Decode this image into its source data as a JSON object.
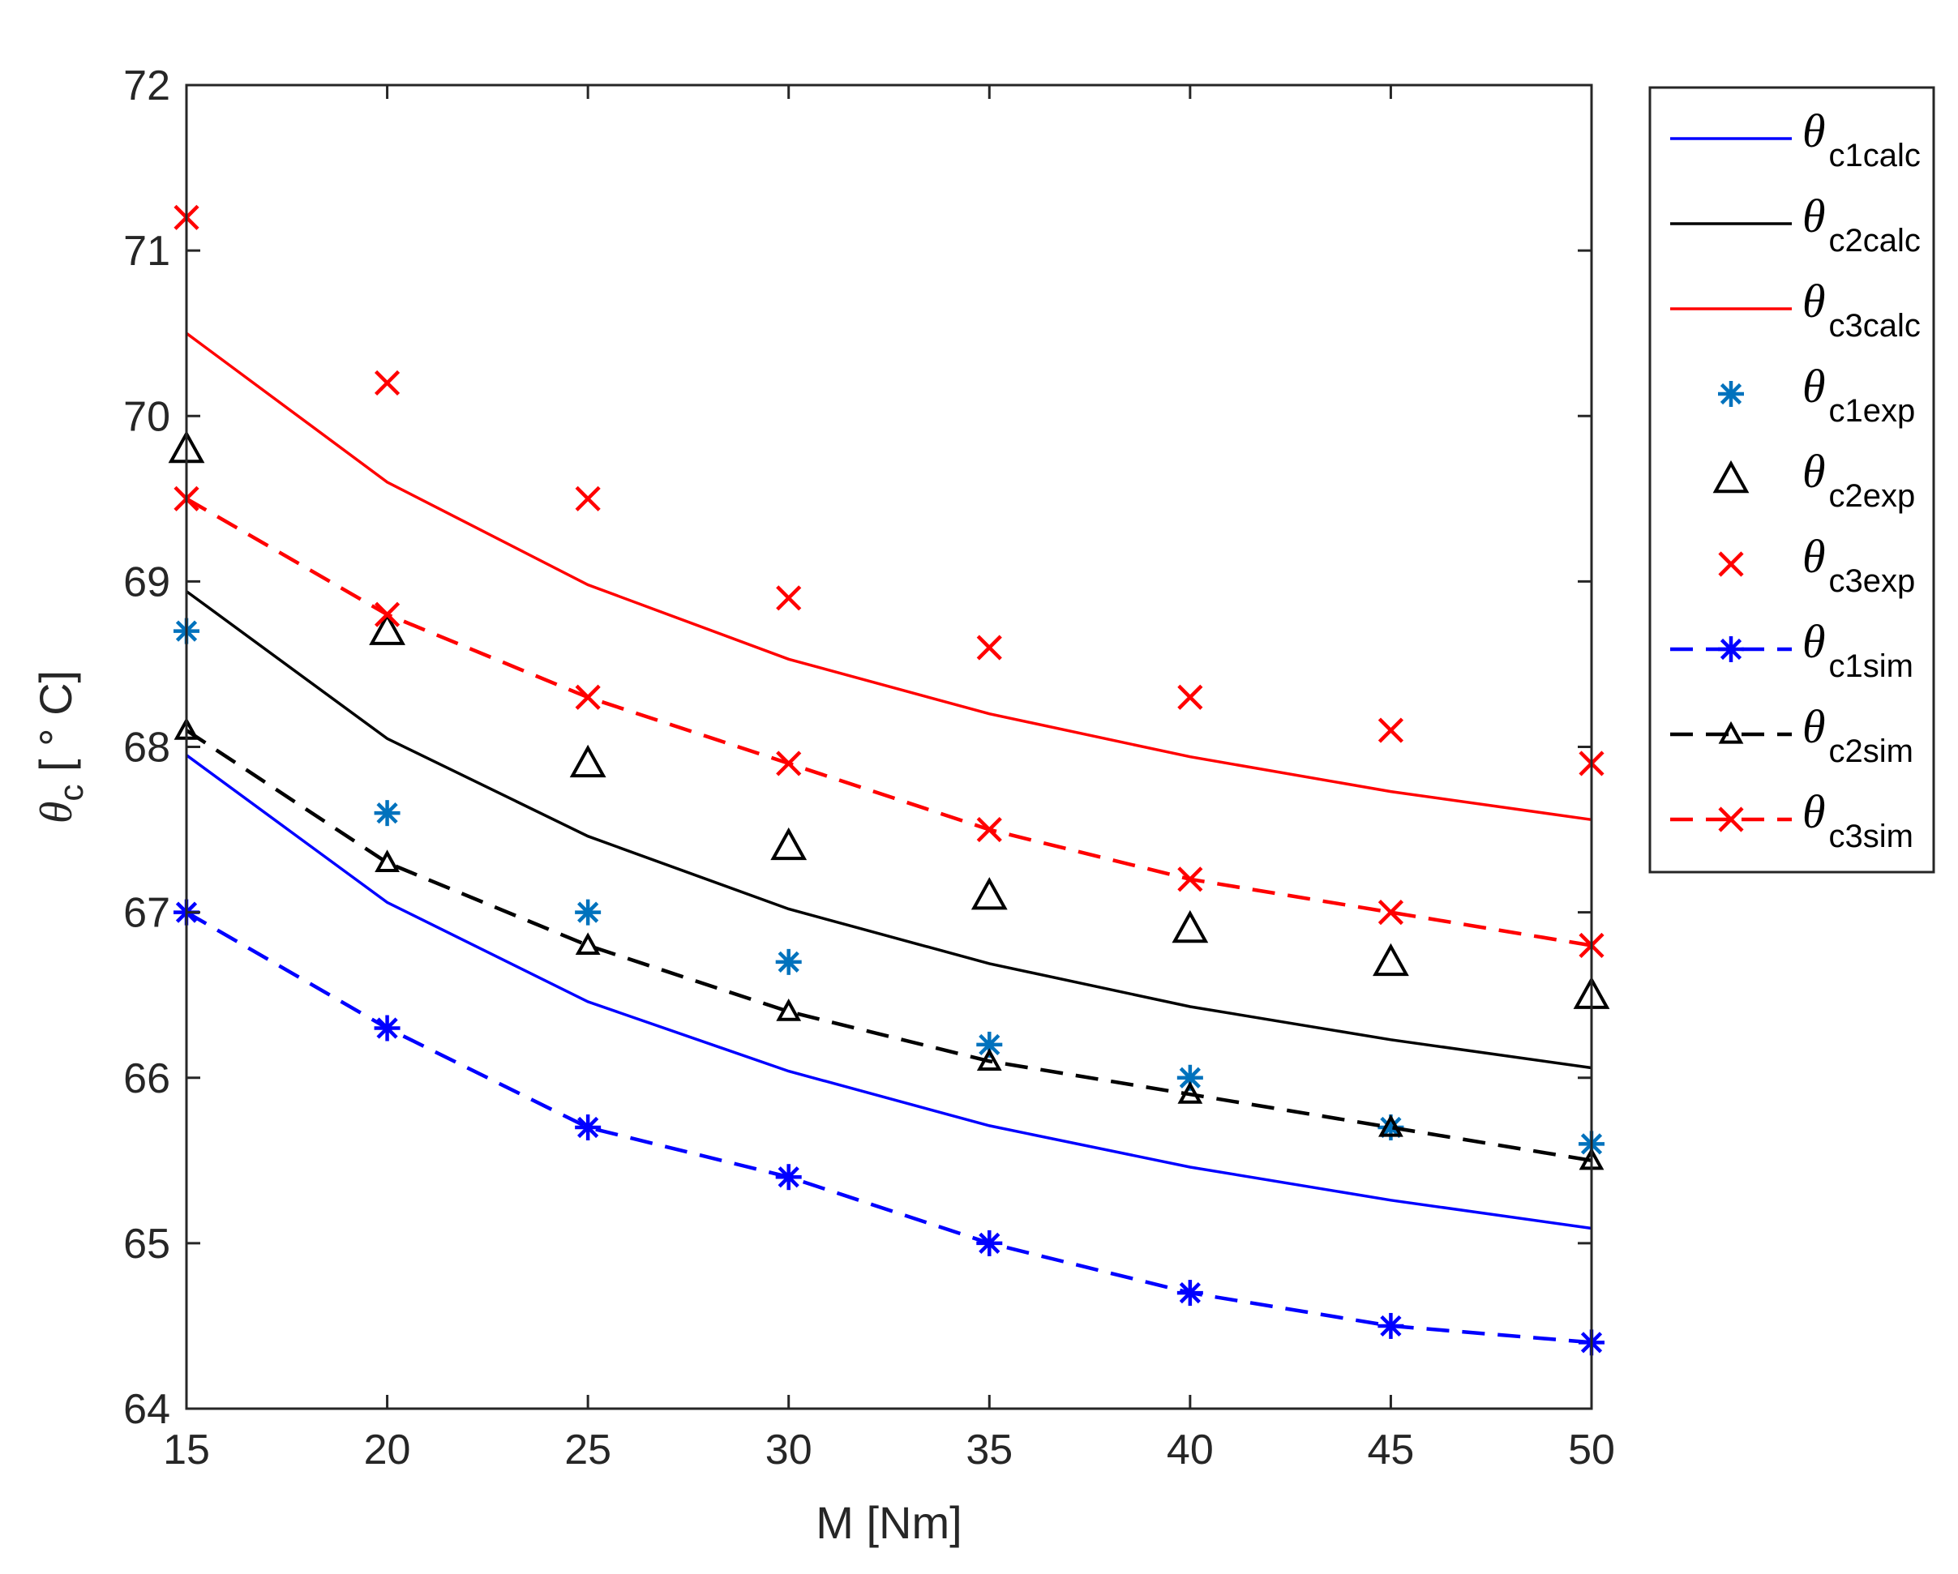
{
  "chart_data": {
    "type": "line",
    "title": "",
    "xlabel": "M [Nm]",
    "ylabel": {
      "symbol": "θ",
      "subscript": "c",
      "unit": " [ ° C]"
    },
    "xlim": [
      15,
      50
    ],
    "ylim": [
      64,
      72
    ],
    "xticks": [
      15,
      20,
      25,
      30,
      35,
      40,
      45,
      50
    ],
    "yticks": [
      64,
      65,
      66,
      67,
      68,
      69,
      70,
      71,
      72
    ],
    "x": [
      15,
      20,
      25,
      30,
      35,
      40,
      45,
      50
    ],
    "legend_position": "outside-right",
    "colors": {
      "blue": "#0000ff",
      "black": "#000000",
      "red": "#ff0000",
      "lightblue": "#0072bd"
    },
    "series": [
      {
        "name": "θ c1calc",
        "symbol": "θ",
        "sub": "c1calc",
        "values": [
          67.95,
          67.06,
          66.46,
          66.04,
          65.71,
          65.46,
          65.26,
          65.09
        ],
        "color": "#0000ff",
        "line": "solid",
        "marker": "none"
      },
      {
        "name": "θ c2calc",
        "symbol": "θ",
        "sub": "c2calc",
        "values": [
          68.94,
          68.05,
          67.46,
          67.02,
          66.69,
          66.43,
          66.23,
          66.06
        ],
        "color": "#000000",
        "line": "solid",
        "marker": "none"
      },
      {
        "name": "θ c3calc",
        "symbol": "θ",
        "sub": "c3calc",
        "values": [
          70.5,
          69.6,
          68.98,
          68.53,
          68.2,
          67.94,
          67.73,
          67.56
        ],
        "color": "#ff0000",
        "line": "solid",
        "marker": "none"
      },
      {
        "name": "θ c1exp",
        "symbol": "θ",
        "sub": "c1exp",
        "values": [
          68.7,
          67.6,
          67.0,
          66.7,
          66.2,
          66.0,
          65.7,
          65.6
        ],
        "color": "#0072bd",
        "line": "none",
        "marker": "star"
      },
      {
        "name": "θ c2exp",
        "symbol": "θ",
        "sub": "c2exp",
        "values": [
          69.8,
          68.7,
          67.9,
          67.4,
          67.1,
          66.9,
          66.7,
          66.5
        ],
        "color": "#000000",
        "line": "none",
        "marker": "triangle"
      },
      {
        "name": "θ c3exp",
        "symbol": "θ",
        "sub": "c3exp",
        "values": [
          71.2,
          70.2,
          69.5,
          68.9,
          68.6,
          68.3,
          68.1,
          67.9
        ],
        "color": "#ff0000",
        "line": "none",
        "marker": "x"
      },
      {
        "name": "θ c1sim",
        "symbol": "θ",
        "sub": "c1sim",
        "values": [
          67.0,
          66.3,
          65.7,
          65.4,
          65.0,
          64.7,
          64.5,
          64.4
        ],
        "color": "#0000ff",
        "line": "dashed",
        "marker": "star"
      },
      {
        "name": "θ c2sim",
        "symbol": "θ",
        "sub": "c2sim",
        "values": [
          68.1,
          67.3,
          66.8,
          66.4,
          66.1,
          65.9,
          65.7,
          65.5
        ],
        "color": "#000000",
        "line": "dashed",
        "marker": "triangle-small"
      },
      {
        "name": "θ c3sim",
        "symbol": "θ",
        "sub": "c3sim",
        "values": [
          69.5,
          68.8,
          68.3,
          67.9,
          67.5,
          67.2,
          67.0,
          66.8
        ],
        "color": "#ff0000",
        "line": "dashed",
        "marker": "x"
      }
    ]
  }
}
